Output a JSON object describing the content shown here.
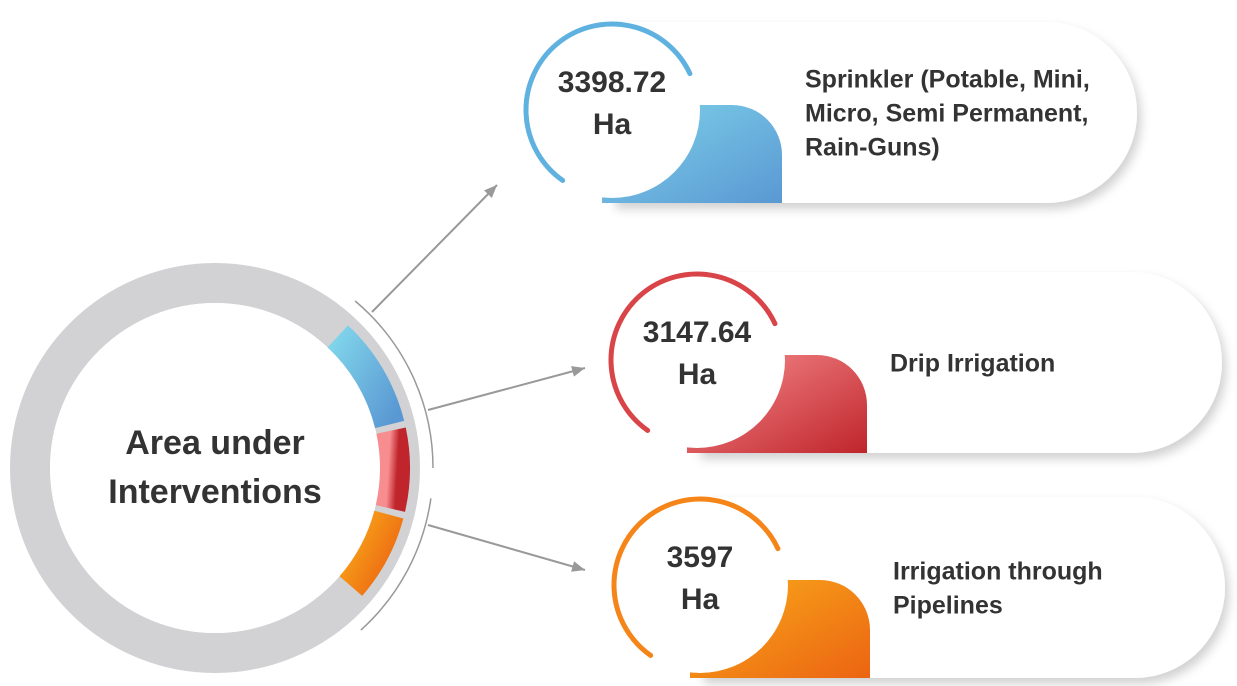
{
  "center": {
    "lines": [
      "Area under",
      "Interventions"
    ]
  },
  "items": [
    {
      "value": "3398.72",
      "unit": "Ha",
      "lines": [
        "Sprinkler (Potable, Mini,",
        "Micro, Semi Permanent,",
        "Rain-Guns)"
      ]
    },
    {
      "value": "3147.64",
      "unit": "Ha",
      "lines": [
        "Drip Irrigation"
      ]
    },
    {
      "value": "3597",
      "unit": "Ha",
      "lines": [
        "Irrigation through",
        "Pipelines"
      ]
    }
  ]
}
